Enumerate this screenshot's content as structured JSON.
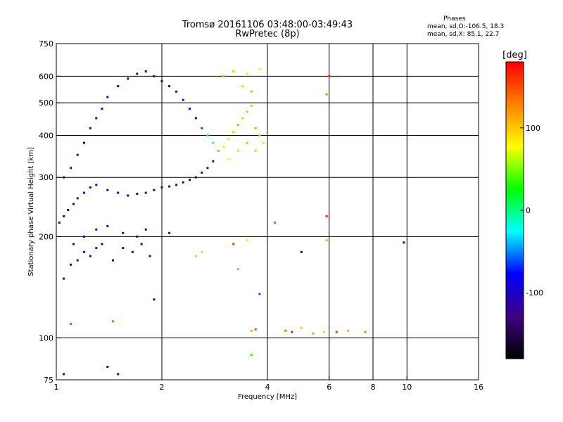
{
  "header": {
    "title_line1": "Tromsø 20161106 03:48:00-03:49:43",
    "title_line2": "RwPretec (8p)"
  },
  "phases": {
    "title": "Phases",
    "o_line": "mean, sd,O:-106.5, 18.3",
    "x_line": "mean, sd,X: 85.1, 22.7"
  },
  "chart_data": {
    "type": "scatter",
    "title": "Tromsø 20161106 03:48:00-03:49:43",
    "subtitle": "RwPretec (8p)",
    "xlabel": "Frequency [MHz]",
    "ylabel": "Stationary phase Virtual Height [km]",
    "xscale": "log",
    "yscale": "log",
    "xlim": [
      1,
      16
    ],
    "ylim": [
      75,
      750
    ],
    "xticks": [
      1,
      2,
      4,
      6,
      8,
      10,
      16
    ],
    "yticks": [
      75,
      100,
      200,
      300,
      400,
      500,
      600,
      750
    ],
    "x_grid": [
      2,
      4,
      6,
      8,
      10
    ],
    "y_grid": [
      100,
      200,
      300,
      400,
      500,
      600
    ],
    "grid": true,
    "colorbar": {
      "label": "[deg]",
      "range": [
        -180,
        180
      ],
      "ticks": [
        100,
        0,
        -100
      ],
      "colors": [
        "#ff0000",
        "#ff8000",
        "#ffff00",
        "#00ff00",
        "#00ffff",
        "#0000ff",
        "#400080",
        "#000000"
      ]
    },
    "series": [
      {
        "points": [
          [
            1.05,
            150,
            -105
          ],
          [
            1.1,
            165,
            -110
          ],
          [
            1.15,
            170,
            -100
          ],
          [
            1.2,
            180,
            -108
          ],
          [
            1.25,
            175,
            -112
          ],
          [
            1.3,
            185,
            -95
          ],
          [
            1.35,
            190,
            -104
          ],
          [
            1.45,
            170,
            -115
          ],
          [
            1.55,
            185,
            -100
          ],
          [
            1.65,
            180,
            -110
          ],
          [
            1.75,
            190,
            -98
          ],
          [
            1.85,
            175,
            -120
          ],
          [
            1.02,
            220,
            -115
          ],
          [
            1.05,
            230,
            -110
          ],
          [
            1.08,
            240,
            -100
          ],
          [
            1.12,
            250,
            -105
          ],
          [
            1.15,
            260,
            -112
          ],
          [
            1.2,
            270,
            -108
          ],
          [
            1.25,
            280,
            -95
          ],
          [
            1.3,
            285,
            -118
          ],
          [
            1.4,
            275,
            -102
          ],
          [
            1.5,
            270,
            -110
          ],
          [
            1.6,
            265,
            -100
          ],
          [
            1.7,
            268,
            -105
          ],
          [
            1.8,
            270,
            -110
          ],
          [
            1.9,
            275,
            -98
          ],
          [
            2.0,
            280,
            -106
          ],
          [
            2.1,
            282,
            -112
          ],
          [
            2.2,
            285,
            -104
          ],
          [
            2.3,
            290,
            -100
          ],
          [
            2.4,
            295,
            -108
          ],
          [
            2.5,
            300,
            -96
          ],
          [
            2.6,
            310,
            -110
          ],
          [
            2.7,
            320,
            -102
          ],
          [
            2.8,
            335,
            -104
          ],
          [
            1.05,
            300,
            -108
          ],
          [
            1.1,
            320,
            -112
          ],
          [
            1.15,
            350,
            -100
          ],
          [
            1.2,
            380,
            -110
          ],
          [
            1.25,
            420,
            -105
          ],
          [
            1.3,
            450,
            -100
          ],
          [
            1.35,
            480,
            -112
          ],
          [
            1.4,
            520,
            -98
          ],
          [
            1.5,
            560,
            -106
          ],
          [
            1.6,
            590,
            -110
          ],
          [
            1.7,
            610,
            -100
          ],
          [
            1.8,
            620,
            -108
          ],
          [
            1.9,
            600,
            -104
          ],
          [
            2.0,
            580,
            -98
          ],
          [
            2.1,
            560,
            -110
          ],
          [
            2.2,
            540,
            -100
          ],
          [
            2.3,
            510,
            -106
          ],
          [
            2.4,
            480,
            -90
          ],
          [
            2.5,
            450,
            -84
          ],
          [
            2.6,
            420,
            -60
          ],
          [
            2.7,
            400,
            -30
          ],
          [
            2.8,
            380,
            -10
          ],
          [
            2.9,
            360,
            40
          ],
          [
            3.0,
            370,
            70
          ],
          [
            3.1,
            390,
            90
          ],
          [
            3.2,
            410,
            100
          ],
          [
            3.3,
            430,
            110
          ],
          [
            3.4,
            450,
            95
          ],
          [
            3.5,
            470,
            105
          ],
          [
            3.6,
            490,
            100
          ],
          [
            3.7,
            420,
            115
          ],
          [
            3.8,
            400,
            100
          ],
          [
            3.9,
            380,
            90
          ],
          [
            3.1,
            340,
            80
          ],
          [
            3.3,
            360,
            95
          ],
          [
            3.5,
            380,
            110
          ],
          [
            3.7,
            360,
            100
          ],
          [
            3.0,
            600,
            110
          ],
          [
            3.2,
            620,
            100
          ],
          [
            3.5,
            610,
            90
          ],
          [
            3.8,
            630,
            70
          ],
          [
            3.4,
            560,
            60
          ],
          [
            3.6,
            540,
            50
          ],
          [
            1.12,
            190,
            -110
          ],
          [
            1.2,
            200,
            -105
          ],
          [
            1.3,
            210,
            -112
          ],
          [
            1.4,
            215,
            -100
          ],
          [
            1.55,
            205,
            -108
          ],
          [
            1.7,
            200,
            -95
          ],
          [
            1.8,
            210,
            -110
          ],
          [
            2.1,
            205,
            -120
          ],
          [
            2.5,
            175,
            100
          ],
          [
            2.6,
            180,
            95
          ],
          [
            3.6,
            105,
            110
          ],
          [
            3.7,
            106,
            150
          ],
          [
            4.5,
            105,
            130
          ],
          [
            4.7,
            104,
            170
          ],
          [
            5.0,
            107,
            100
          ],
          [
            5.4,
            103,
            120
          ],
          [
            5.8,
            104,
            90
          ],
          [
            6.3,
            104,
            160
          ],
          [
            6.8,
            105,
            115
          ],
          [
            7.6,
            104,
            130
          ],
          [
            1.1,
            110,
            150
          ],
          [
            1.45,
            112,
            140
          ],
          [
            1.05,
            78,
            -90
          ],
          [
            1.5,
            78,
            -80
          ],
          [
            1.4,
            82,
            -110
          ],
          [
            1.9,
            130,
            -100
          ],
          [
            3.6,
            89,
            40
          ],
          [
            3.2,
            190,
            160
          ],
          [
            3.5,
            195,
            80
          ],
          [
            4.2,
            220,
            150
          ],
          [
            5.0,
            180,
            -100
          ],
          [
            5.9,
            195,
            110
          ],
          [
            5.9,
            230,
            170
          ],
          [
            6.0,
            600,
            160
          ],
          [
            5.9,
            530,
            130
          ],
          [
            9.8,
            192,
            -90
          ],
          [
            3.3,
            160,
            -20
          ],
          [
            3.8,
            135,
            -60
          ]
        ]
      }
    ]
  }
}
